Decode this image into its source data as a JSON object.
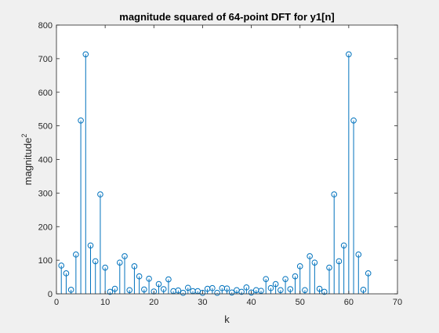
{
  "chart_data": {
    "type": "stem",
    "title": "magnitude squared of 64-point DFT for y1[n]",
    "xlabel": "k",
    "ylabel": "magnitude",
    "ylabel_superscript": "2",
    "xlim": [
      0,
      70
    ],
    "ylim": [
      0,
      800
    ],
    "xticks": [
      "0",
      "10",
      "20",
      "30",
      "40",
      "50",
      "60",
      "70"
    ],
    "yticks": [
      "0",
      "100",
      "200",
      "300",
      "400",
      "500",
      "600",
      "700",
      "800"
    ],
    "grid": false,
    "colors": {
      "series": "#0072bd",
      "axes": "#262626",
      "background": "#ffffff",
      "figure": "#f0f0f0"
    },
    "x": [
      1,
      2,
      3,
      4,
      5,
      6,
      7,
      8,
      9,
      10,
      11,
      12,
      13,
      14,
      15,
      16,
      17,
      18,
      19,
      20,
      21,
      22,
      23,
      24,
      25,
      26,
      27,
      28,
      29,
      30,
      31,
      32,
      33,
      34,
      35,
      36,
      37,
      38,
      39,
      40,
      41,
      42,
      43,
      44,
      45,
      46,
      47,
      48,
      49,
      50,
      51,
      52,
      53,
      54,
      55,
      56,
      57,
      58,
      59,
      60,
      61,
      62,
      63,
      64
    ],
    "values": [
      84,
      61,
      12,
      117,
      516,
      713,
      144,
      97,
      296,
      78,
      6,
      15,
      93,
      112,
      11,
      82,
      52,
      13,
      45,
      7,
      29,
      14,
      43,
      8,
      10,
      3,
      18,
      8,
      8,
      3,
      15,
      17,
      3,
      17,
      16,
      4,
      11,
      6,
      19,
      4,
      11,
      9,
      44,
      17,
      29,
      11,
      44,
      14,
      52,
      82,
      11,
      112,
      93,
      15,
      6,
      78,
      296,
      97,
      144,
      713,
      516,
      117,
      12,
      61
    ]
  }
}
